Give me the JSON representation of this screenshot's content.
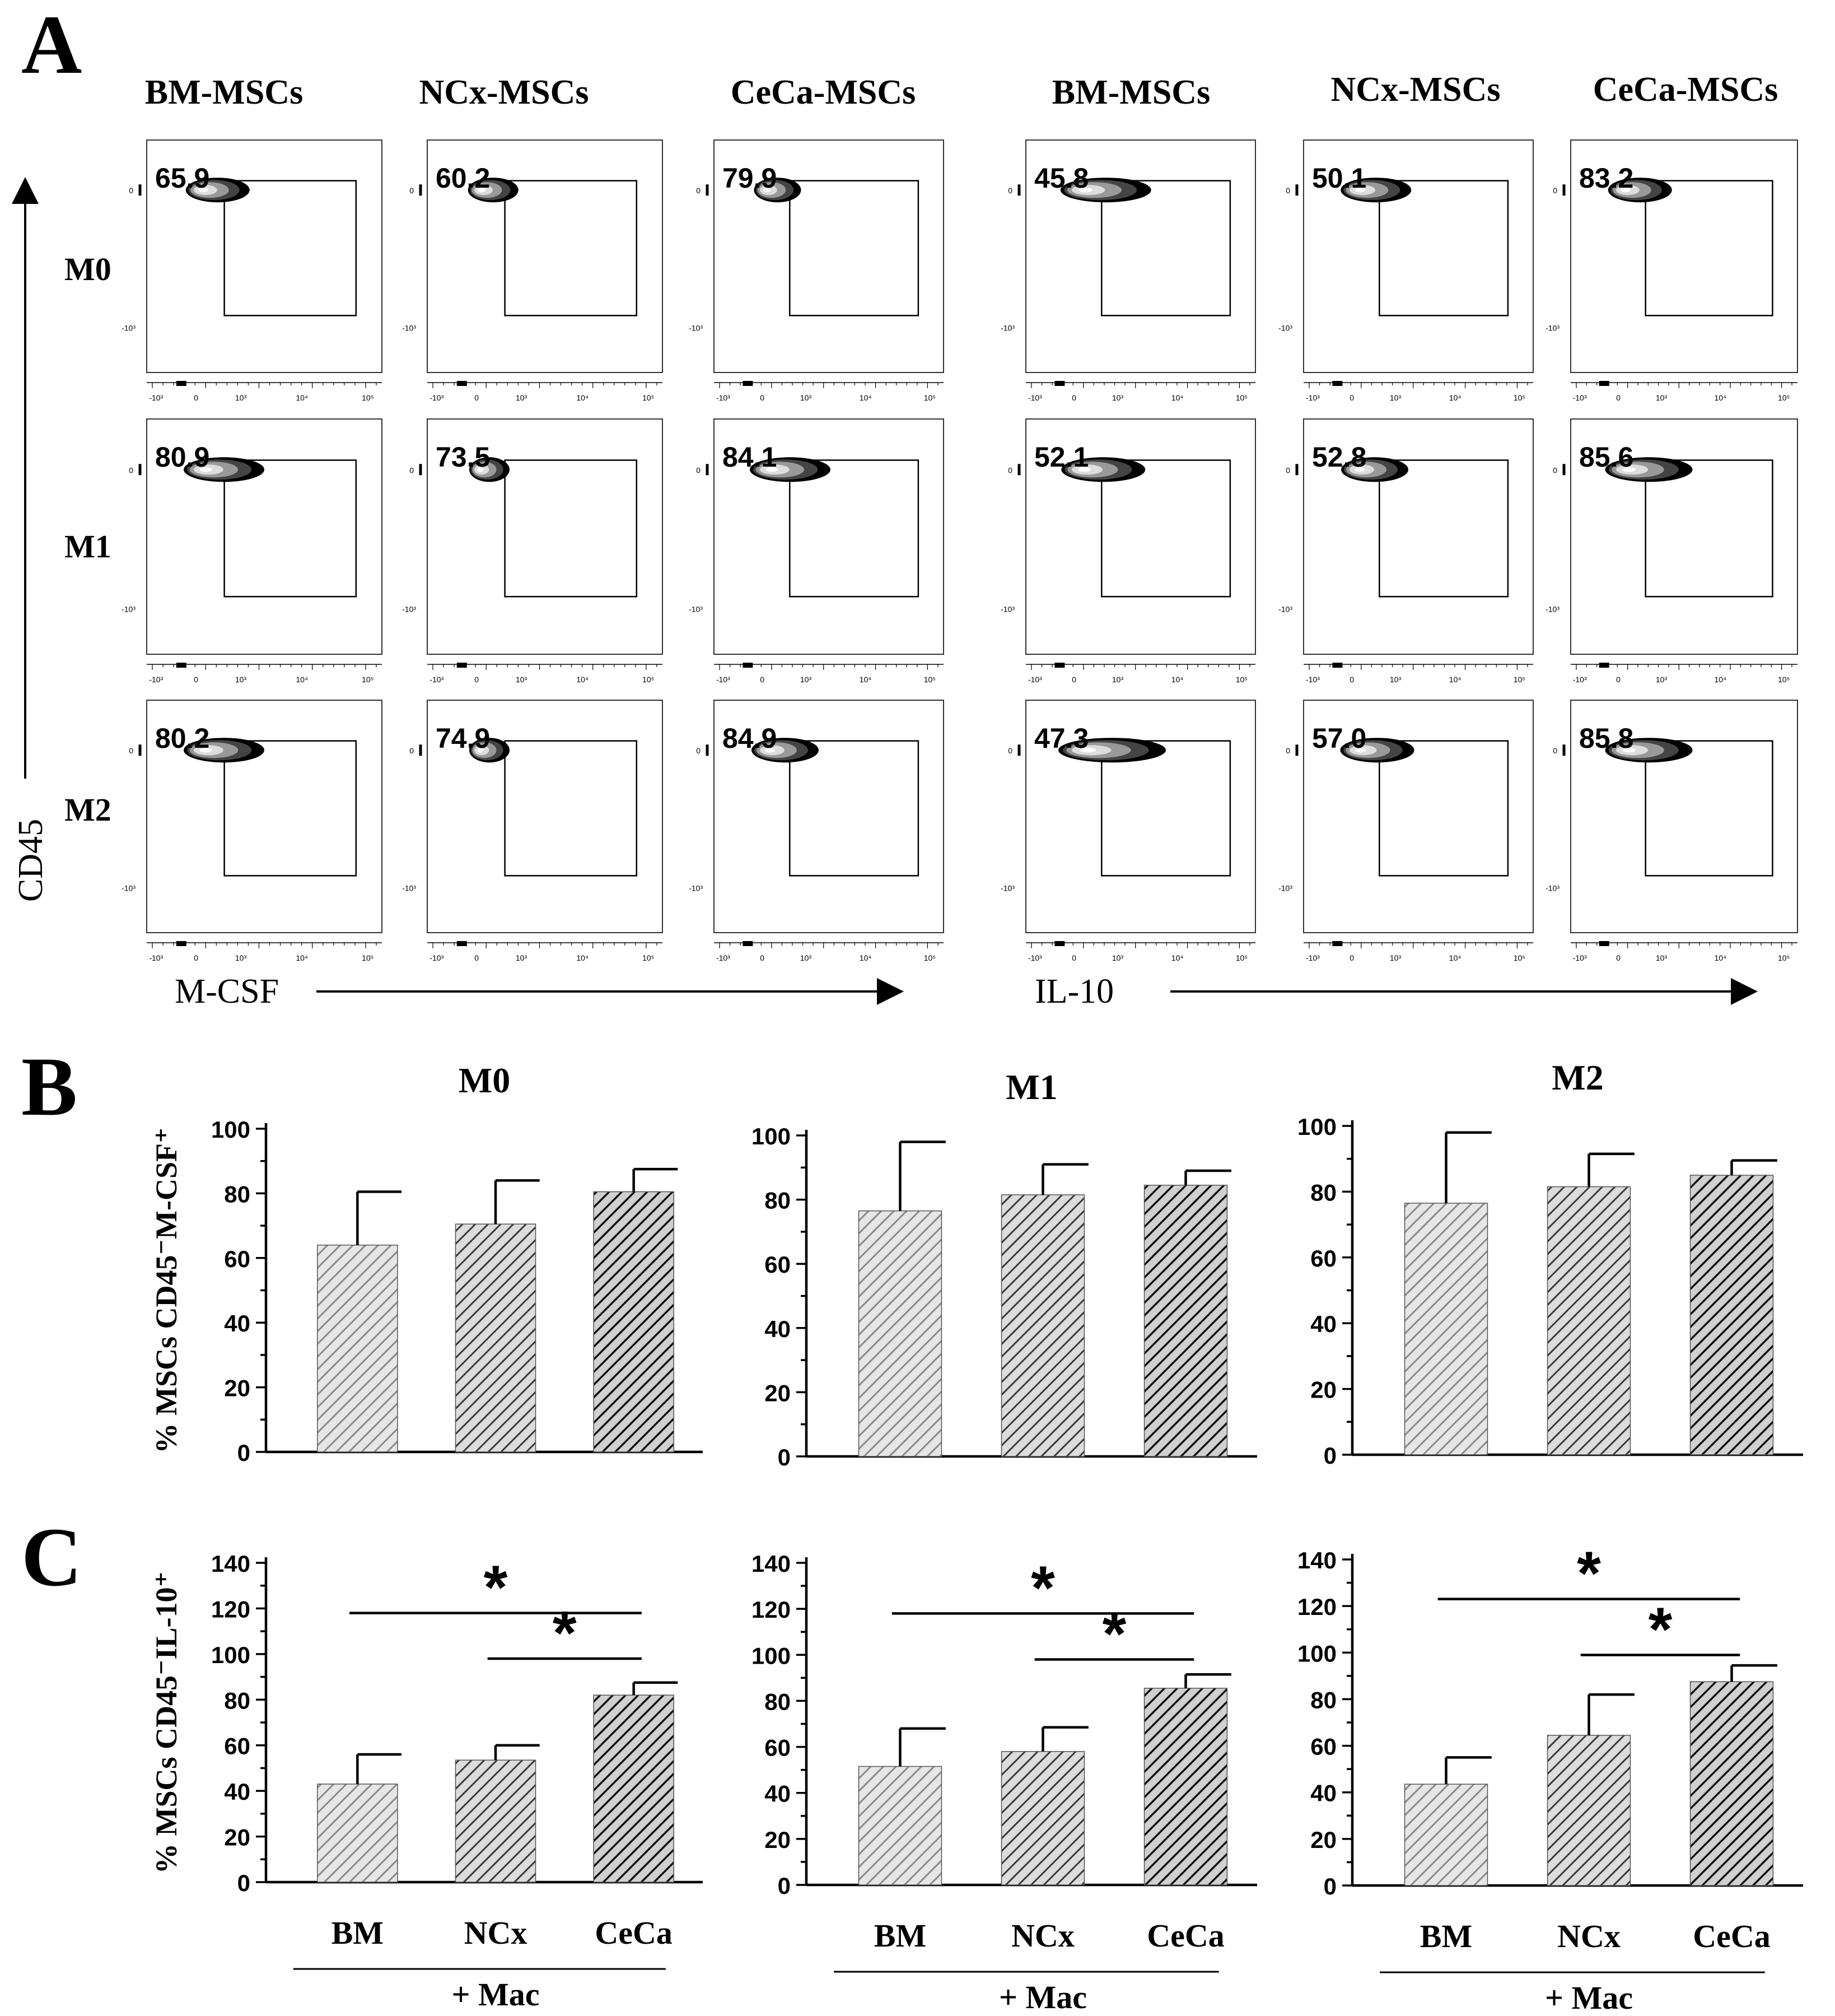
{
  "figure": {
    "panel_letters": [
      "A",
      "B",
      "C"
    ]
  },
  "panel_a": {
    "group_headers": [
      "BM-MSCs",
      "NCx-MSCs",
      "CeCa-MSCs",
      "BM-MSCs",
      "NCx-MSCs",
      "CeCa-MSCs"
    ],
    "row_labels": [
      "M0",
      "M1",
      "M2"
    ],
    "y_axis_label": "CD45",
    "x_axis_labels": [
      "M-CSF",
      "IL-10"
    ],
    "tick_labels": [
      "-10³",
      "0",
      "10³",
      "10⁴",
      "10⁵"
    ],
    "y_tick_labels": [
      "0",
      "-10³"
    ],
    "gate_values": [
      [
        "65.9",
        "60.2",
        "79.9",
        "45.8",
        "50.1",
        "83.2"
      ],
      [
        "80.9",
        "73.5",
        "84.1",
        "52.1",
        "52.8",
        "85.6"
      ],
      [
        "80.2",
        "74.9",
        "84.9",
        "47.3",
        "57.0",
        "85.8"
      ]
    ]
  },
  "chart_data": [
    {
      "type": "bar",
      "panel": "B",
      "title": "M0",
      "ylabel": "% MSCs CD45⁻M-CSF⁺",
      "categories": [
        "BM",
        "NCx",
        "CeCa"
      ],
      "values": [
        64,
        70.5,
        80.5
      ],
      "errors": [
        16.5,
        13.5,
        7
      ],
      "ylim": [
        0,
        100
      ],
      "yticks": [
        0,
        20,
        40,
        60,
        80,
        100
      ],
      "significance": []
    },
    {
      "type": "bar",
      "panel": "B",
      "title": "M1",
      "ylabel": "",
      "categories": [
        "BM",
        "NCx",
        "CeCa"
      ],
      "values": [
        76.5,
        81.5,
        84.5
      ],
      "errors": [
        21.5,
        9.5,
        4.5
      ],
      "ylim": [
        0,
        100
      ],
      "yticks": [
        0,
        20,
        40,
        60,
        80,
        100
      ],
      "significance": []
    },
    {
      "type": "bar",
      "panel": "B",
      "title": "M2",
      "ylabel": "",
      "categories": [
        "BM",
        "NCx",
        "CeCa"
      ],
      "values": [
        76.5,
        81.5,
        85
      ],
      "errors": [
        21.5,
        10,
        4.5
      ],
      "ylim": [
        0,
        100
      ],
      "yticks": [
        0,
        20,
        40,
        60,
        80,
        100
      ],
      "significance": []
    },
    {
      "type": "bar",
      "panel": "C",
      "title": "",
      "ylabel": "% MSCs CD45⁻IL-10⁺",
      "categories": [
        "BM",
        "NCx",
        "CeCa"
      ],
      "group_label": "+ Mac",
      "values": [
        43,
        53.5,
        82
      ],
      "errors": [
        13,
        6.5,
        5.5
      ],
      "ylim": [
        0,
        140
      ],
      "yticks": [
        0,
        20,
        40,
        60,
        80,
        100,
        120,
        140
      ],
      "significance": [
        {
          "from": 0,
          "to": 2,
          "level": 118,
          "label": "*"
        },
        {
          "from": 1,
          "to": 2,
          "level": 98,
          "label": "*"
        }
      ]
    },
    {
      "type": "bar",
      "panel": "C",
      "title": "",
      "ylabel": "",
      "categories": [
        "BM",
        "NCx",
        "CeCa"
      ],
      "group_label": "+ Mac",
      "values": [
        51.5,
        58,
        85.5
      ],
      "errors": [
        16.5,
        10.5,
        6
      ],
      "ylim": [
        0,
        140
      ],
      "yticks": [
        0,
        20,
        40,
        60,
        80,
        100,
        120,
        140
      ],
      "significance": [
        {
          "from": 0,
          "to": 2,
          "level": 118,
          "label": "*"
        },
        {
          "from": 1,
          "to": 2,
          "level": 98,
          "label": "*"
        }
      ]
    },
    {
      "type": "bar",
      "panel": "C",
      "title": "",
      "ylabel": "",
      "categories": [
        "BM",
        "NCx",
        "CeCa"
      ],
      "group_label": "+ Mac",
      "values": [
        43.5,
        64.5,
        87.5
      ],
      "errors": [
        11.5,
        17.5,
        7
      ],
      "ylim": [
        0,
        140
      ],
      "yticks": [
        0,
        20,
        40,
        60,
        80,
        100,
        120,
        140
      ],
      "significance": [
        {
          "from": 0,
          "to": 2,
          "level": 123,
          "label": "*"
        },
        {
          "from": 1,
          "to": 2,
          "level": 99,
          "label": "*"
        }
      ]
    }
  ]
}
